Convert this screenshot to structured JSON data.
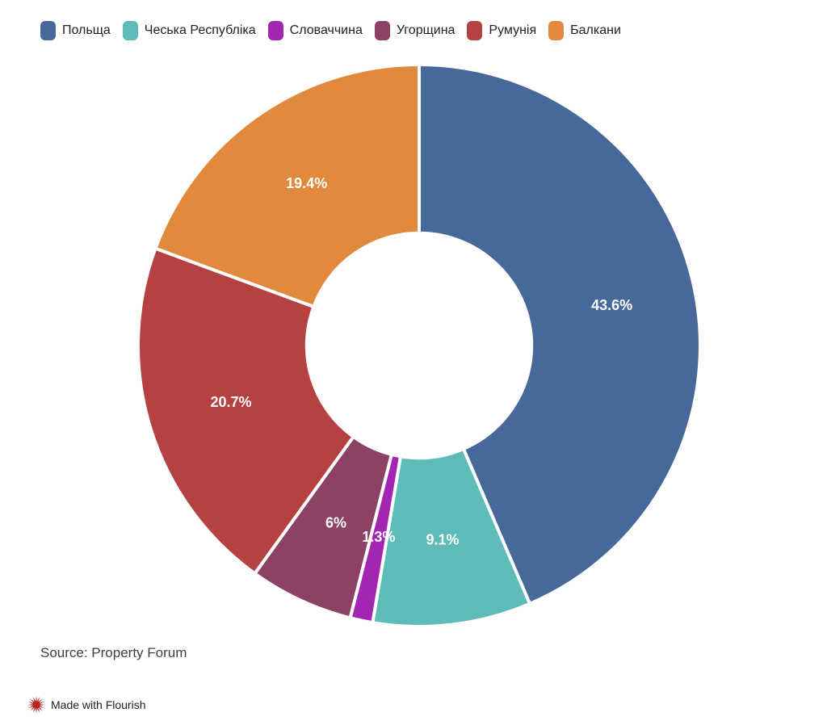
{
  "chart_data": {
    "type": "pie",
    "subtype": "donut",
    "categories": [
      "Польща",
      "Чеська Республіка",
      "Словаччина",
      "Угорщина",
      "Румунія",
      "Балкани"
    ],
    "values": [
      43.6,
      9.1,
      1.3,
      6,
      20.7,
      19.4
    ],
    "labels": [
      "43.6%",
      "9.1%",
      "1.3%",
      "6%",
      "20.7%",
      "19.4%"
    ],
    "colors": [
      "#47699a",
      "#5ebcb8",
      "#a226b2",
      "#8d4164",
      "#b54140",
      "#e18a3d"
    ],
    "title": "",
    "legend_position": "top-left",
    "start_angle_deg": 0,
    "direction": "clockwise",
    "inner_radius_ratio": 0.4,
    "separator_color": "#ffffff",
    "label_color": "#ffffff"
  },
  "source": {
    "text": "Source: Property Forum"
  },
  "attribution": {
    "icon": "flourish-starburst-icon",
    "icon_color": "#b5241e",
    "text": "Made with Flourish"
  }
}
